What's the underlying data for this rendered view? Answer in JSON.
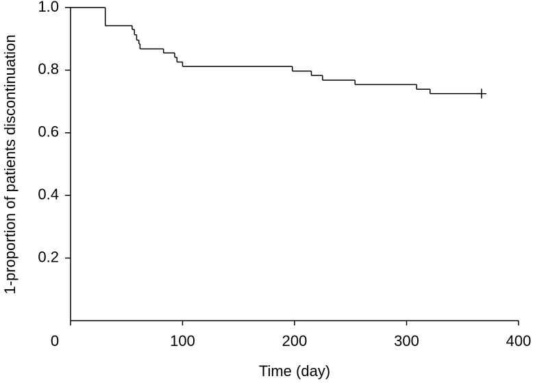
{
  "chart_data": {
    "type": "step",
    "x_label": "Time (day)",
    "y_label": "1-proportion of patients discontinuation",
    "x": [
      0,
      31,
      55,
      57,
      59,
      61,
      62,
      83,
      93,
      95,
      100,
      198,
      215,
      225,
      254,
      309,
      321,
      367
    ],
    "series": [
      {
        "color": "#000000",
        "values": [
          1.0,
          0.942,
          0.93,
          0.913,
          0.896,
          0.884,
          0.868,
          0.855,
          0.841,
          0.826,
          0.812,
          0.797,
          0.783,
          0.768,
          0.754,
          0.739,
          0.725,
          0.725
        ]
      }
    ],
    "censor_at_end": true,
    "xlim": [
      0,
      400
    ],
    "xticks": [
      0,
      100,
      200,
      300,
      400
    ],
    "ylim": [
      0,
      1
    ],
    "yticks": [
      0.2,
      0.4,
      0.6,
      0.8,
      {
        "value": 1,
        "label": "1.0"
      }
    ]
  }
}
